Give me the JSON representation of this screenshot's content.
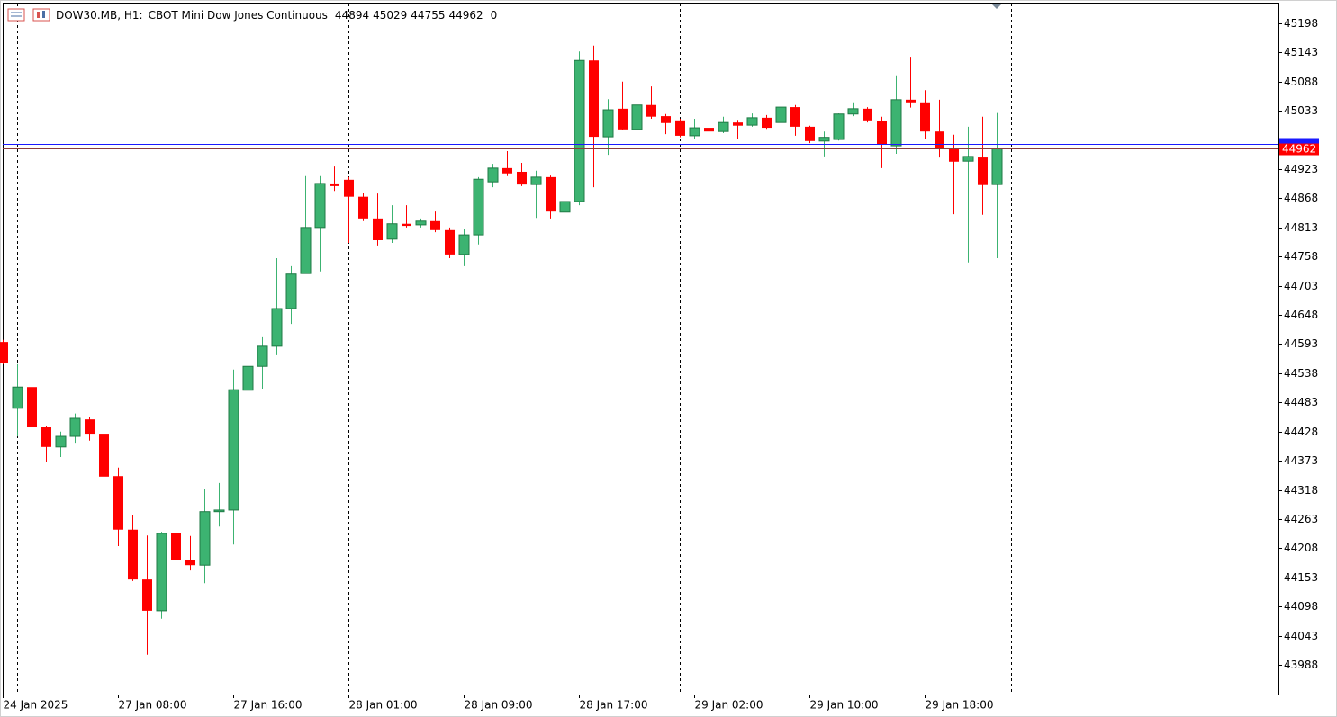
{
  "chart_data": {
    "type": "candlestick",
    "symbol": "DOW30.MB, H1:",
    "description": "CBOT Mini Dow Jones Continuous",
    "volume": 0,
    "up_color": "#3cb371",
    "up_edge": "#1f7a45",
    "down_color": "#ff0000",
    "ask": 44970,
    "categories": [
      "24 Jan 2025",
      null,
      null,
      null,
      null,
      null,
      null,
      null,
      "27 Jan 08:00",
      null,
      null,
      null,
      null,
      null,
      null,
      null,
      "27 Jan 16:00",
      null,
      null,
      null,
      null,
      null,
      null,
      null,
      "28 Jan 01:00",
      null,
      null,
      null,
      null,
      null,
      null,
      null,
      "28 Jan 09:00",
      null,
      null,
      null,
      null,
      null,
      null,
      null,
      "28 Jan 17:00",
      null,
      null,
      null,
      null,
      null,
      null,
      null,
      "29 Jan 02:00",
      null,
      null,
      null,
      null,
      null,
      null,
      null,
      "29 Jan 10:00",
      null,
      null,
      null,
      null,
      null,
      null,
      null,
      "29 Jan 18:00",
      null,
      null,
      null,
      null,
      null
    ],
    "open": [
      44597,
      44472,
      44512,
      44436,
      44399,
      44419,
      44451,
      44424,
      44344,
      44243,
      44149,
      44090,
      44236,
      44185,
      44176,
      44277,
      44280,
      44506,
      44551,
      44589,
      44660,
      44726,
      44813,
      44896,
      44903,
      44871,
      44830,
      44791,
      44820,
      44818,
      44825,
      44808,
      44762,
      44799,
      44899,
      44925,
      44918,
      44894,
      44908,
      44842,
      44862,
      45128,
      44984,
      45037,
      44998,
      45044,
      45023,
      45015,
      44986,
      45001,
      44994,
      45011,
      45006,
      45020,
      45011,
      45040,
      45003,
      44976,
      44979,
      45027,
      45037,
      45013,
      44967,
      45054,
      45049,
      44994,
      44962,
      44938,
      44945,
      44894
    ],
    "high": [
      44601,
      44555,
      44521,
      44439,
      44428,
      44462,
      44455,
      44428,
      44360,
      44271,
      44232,
      44239,
      44265,
      44231,
      44319,
      44331,
      44545,
      44611,
      44606,
      44755,
      44740,
      44910,
      44910,
      44928,
      44908,
      44879,
      44877,
      44855,
      44855,
      44830,
      44843,
      44813,
      44811,
      44908,
      44933,
      44957,
      44935,
      44920,
      44911,
      44974,
      45145,
      45156,
      45055,
      45088,
      45050,
      45079,
      45027,
      45018,
      45018,
      45005,
      45022,
      45016,
      45028,
      45025,
      45072,
      45044,
      45005,
      44994,
      45028,
      45049,
      45040,
      45022,
      45100,
      45135,
      45072,
      45054,
      44988,
      45003,
      45022,
      45029
    ],
    "low": [
      44555,
      44419,
      44433,
      44370,
      44380,
      44407,
      44411,
      44326,
      44212,
      44146,
      44007,
      44075,
      44119,
      44166,
      44142,
      44249,
      44215,
      44436,
      44509,
      44572,
      44631,
      44726,
      44730,
      44882,
      44784,
      44825,
      44779,
      44784,
      44813,
      44813,
      44804,
      44755,
      44740,
      44781,
      44889,
      44910,
      44891,
      44831,
      44830,
      44791,
      44855,
      44889,
      44950,
      44996,
      44954,
      45018,
      44989,
      44983,
      44979,
      44991,
      44991,
      44979,
      45003,
      44999,
      45010,
      44986,
      44972,
      44947,
      44977,
      45023,
      45011,
      44925,
      44952,
      45039,
      44979,
      44945,
      44838,
      44747,
      44837,
      44755
    ],
    "close": [
      44557,
      44512,
      44436,
      44399,
      44419,
      44453,
      44424,
      44343,
      44243,
      44149,
      44090,
      44236,
      44185,
      44176,
      44277,
      44280,
      44507,
      44551,
      44589,
      44660,
      44725,
      44813,
      44896,
      44891,
      44871,
      44830,
      44789,
      44820,
      44816,
      44825,
      44808,
      44762,
      44799,
      44904,
      44925,
      44915,
      44894,
      44908,
      44843,
      44862,
      45128,
      44984,
      45035,
      44998,
      45044,
      45022,
      45010,
      44986,
      45001,
      44994,
      45011,
      45005,
      45020,
      45001,
      45040,
      45003,
      44976,
      44983,
      45027,
      45037,
      45015,
      44969,
      45054,
      45049,
      44994,
      44962,
      44937,
      44947,
      44893,
      44962
    ],
    "ylim": [
      43932,
      45237
    ],
    "yticks": [
      45198,
      45143,
      45088,
      45033,
      44923,
      44868,
      44813,
      44758,
      44703,
      44648,
      44593,
      44538,
      44483,
      44428,
      44373,
      44318,
      44263,
      44208,
      44153,
      44098,
      44043,
      43988
    ]
  }
}
